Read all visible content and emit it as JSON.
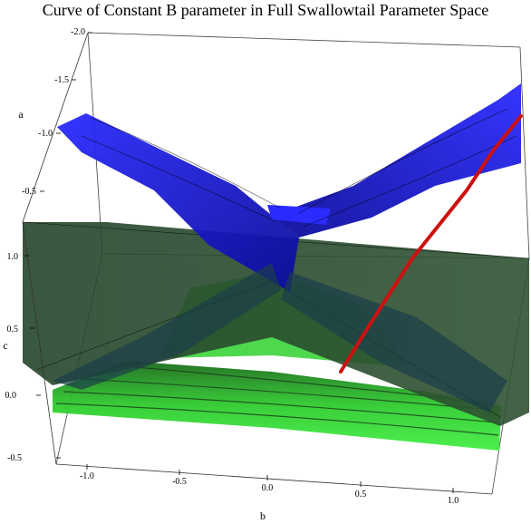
{
  "title": "Curve of Constant B parameter in Full Swallowtail Parameter Space",
  "chart_data": {
    "type": "surface3d",
    "title": "Curve of Constant B parameter in Full Swallowtail Parameter Space",
    "axes": {
      "a": {
        "label": "a",
        "ticks": [
          "-2.0",
          "-1.5",
          "-1.0",
          "-0.5"
        ]
      },
      "b": {
        "label": "b",
        "ticks": [
          "-1.0",
          "-0.5",
          "0.0",
          "0.5",
          "1.0"
        ]
      },
      "c": {
        "label": "c",
        "ticks": [
          "-0.5",
          "0.0",
          "0.5",
          "1.0"
        ]
      }
    },
    "surfaces": [
      {
        "color": "#1f1ff0"
      },
      {
        "color": "#2d4a2a"
      },
      {
        "color": "#33d633"
      }
    ],
    "curve": {
      "color": "#cc1111"
    }
  }
}
